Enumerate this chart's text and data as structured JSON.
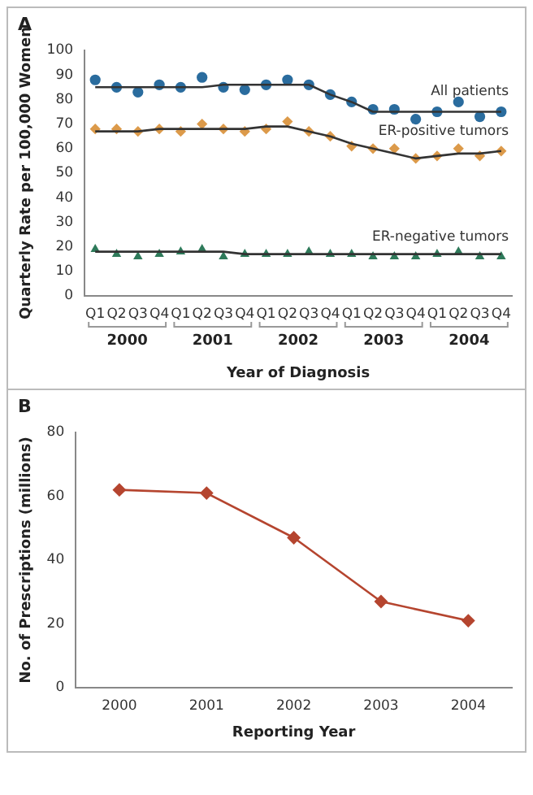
{
  "chart_data": [
    {
      "type": "scatter",
      "annotations": [
        "A",
        "2000",
        "2001",
        "2002",
        "2003",
        "2004"
      ],
      "ylabel": "Quarterly Rate per 100,000 Women",
      "xlabel": "Year of Diagnosis",
      "categories": [
        "Q1",
        "Q2",
        "Q3",
        "Q4",
        "Q1",
        "Q2",
        "Q3",
        "Q4",
        "Q1",
        "Q2",
        "Q3",
        "Q4",
        "Q1",
        "Q2",
        "Q3",
        "Q4",
        "Q1",
        "Q2",
        "Q3",
        "Q4"
      ],
      "ylim": [
        0,
        100
      ],
      "yticks": [
        0,
        10,
        20,
        30,
        40,
        50,
        60,
        70,
        80,
        90,
        100
      ],
      "grid": false,
      "legend": false,
      "series": [
        {
          "type": "line",
          "marker": "none",
          "color": "#333333",
          "values": [
            85,
            85,
            85,
            85,
            85,
            85,
            86,
            86,
            86,
            86,
            86,
            82,
            79,
            75,
            75,
            75,
            75,
            75,
            75,
            75
          ]
        },
        {
          "type": "line",
          "marker": "none",
          "color": "#333333",
          "values": [
            67,
            67,
            67,
            68,
            68,
            68,
            68,
            68,
            69,
            69,
            67,
            65,
            62,
            60,
            58,
            56,
            57,
            58,
            58,
            59
          ]
        },
        {
          "type": "line",
          "marker": "none",
          "color": "#333333",
          "values": [
            18,
            18,
            18,
            18,
            18,
            18,
            18,
            17,
            17,
            17,
            17,
            17,
            17,
            17,
            17,
            17,
            17,
            17,
            17,
            17
          ]
        },
        {
          "name": "All patients",
          "marker": "circle",
          "color": "#2a6c9e",
          "values": [
            88,
            85,
            83,
            86,
            85,
            89,
            85,
            84,
            86,
            88,
            86,
            82,
            79,
            76,
            76,
            72,
            75,
            79,
            73,
            75
          ]
        },
        {
          "name": "ER-positive tumors",
          "marker": "diamond",
          "color": "#dc9a4a",
          "values": [
            68,
            68,
            67,
            68,
            67,
            70,
            68,
            67,
            68,
            71,
            67,
            65,
            61,
            60,
            60,
            56,
            57,
            60,
            57,
            59
          ]
        },
        {
          "name": "ER-negative tumors",
          "marker": "triangle",
          "color": "#2e7a5a",
          "values": [
            19,
            17,
            16,
            17,
            18,
            19,
            16,
            17,
            17,
            17,
            18,
            17,
            17,
            16,
            16,
            16,
            17,
            18,
            16,
            16
          ]
        }
      ]
    },
    {
      "type": "line",
      "annotations": [
        "B"
      ],
      "ylabel": "No. of Prescriptions (millions)",
      "xlabel": "Reporting Year",
      "categories": [
        "2000",
        "2001",
        "2002",
        "2003",
        "2004"
      ],
      "ylim": [
        0,
        80
      ],
      "yticks": [
        0,
        20,
        40,
        60,
        80
      ],
      "grid": false,
      "legend": false,
      "marker": "diamond",
      "series": [
        {
          "color": "#b5452f",
          "values": [
            62,
            61,
            47,
            27,
            21
          ]
        }
      ]
    }
  ]
}
